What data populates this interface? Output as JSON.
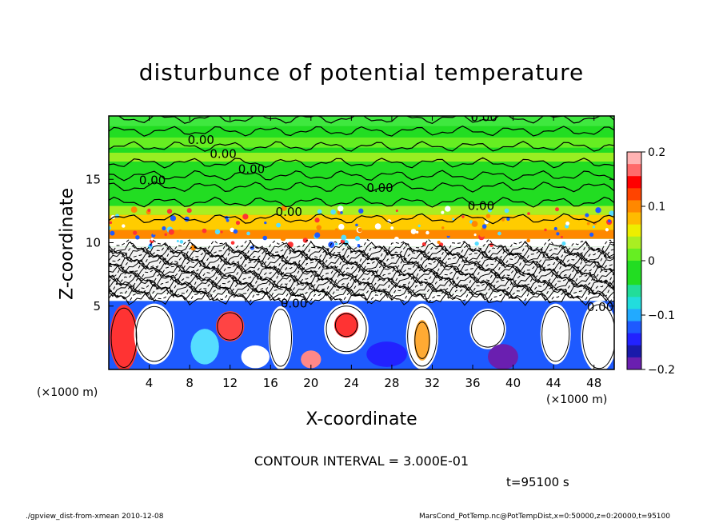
{
  "chart_data": {
    "type": "heatmap",
    "title": "disturbunce of potential temperature",
    "xlabel": "X-coordinate",
    "ylabel": "Z-coordinate",
    "x_unit": "(×1000 m)",
    "y_unit": "(×1000 m)",
    "xlim": [
      0,
      50
    ],
    "ylim": [
      0,
      20
    ],
    "x_ticks": [
      4,
      8,
      12,
      16,
      20,
      24,
      28,
      32,
      36,
      40,
      44,
      48
    ],
    "y_ticks": [
      5,
      10,
      15
    ],
    "colorbar": {
      "range": [
        -0.2,
        0.2
      ],
      "ticks": [
        "0.2",
        "0.1",
        "0",
        "−0.1",
        "−0.2"
      ],
      "tick_values": [
        0.2,
        0.1,
        0,
        -0.1,
        -0.2
      ]
    },
    "contour_labels": [
      "0.00",
      "0.00",
      "0.00",
      "0.00",
      "0.00",
      "0.00",
      "0.00",
      "0.00",
      "0.00",
      "0.00"
    ],
    "contour_interval_text": "CONTOUR INTERVAL = 3.000E-01",
    "time_text": "t=95100 s",
    "grid": false
  },
  "footer": {
    "left": "./gpview_dist-from-xmean  2010-12-08",
    "right": "MarsCond_PotTemp.nc@PotTempDist,x=0:50000,z=0:20000,t=95100"
  }
}
